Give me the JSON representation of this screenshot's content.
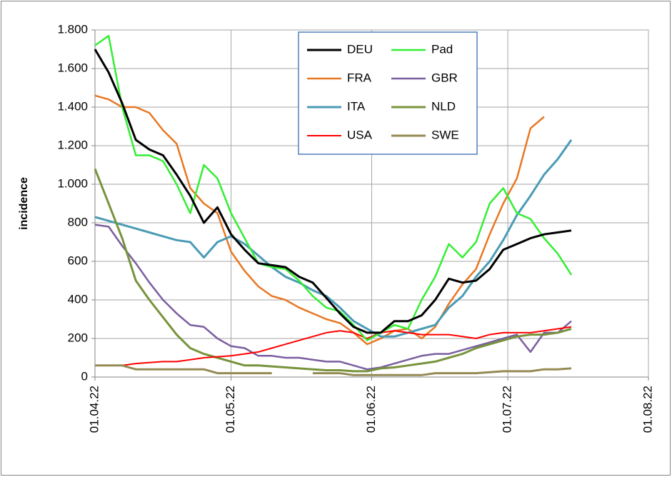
{
  "chart_data": {
    "type": "line",
    "y_label": "incidence",
    "x": [
      "01.04.22",
      "04.04.22",
      "07.04.22",
      "10.04.22",
      "13.04.22",
      "16.04.22",
      "19.04.22",
      "22.04.22",
      "25.04.22",
      "28.04.22",
      "01.05.22",
      "04.05.22",
      "07.05.22",
      "10.05.22",
      "13.05.22",
      "16.05.22",
      "19.05.22",
      "22.05.22",
      "25.05.22",
      "28.05.22",
      "31.05.22",
      "03.06.22",
      "06.06.22",
      "09.06.22",
      "12.06.22",
      "15.06.22",
      "18.06.22",
      "21.06.22",
      "24.06.22",
      "27.06.22",
      "30.06.22",
      "03.07.22",
      "06.07.22",
      "09.07.22",
      "12.07.22",
      "15.07.22"
    ],
    "xlim": [
      "01.04.22",
      "01.08.22"
    ],
    "xticks": [
      "01.04.22",
      "01.05.22",
      "01.06.22",
      "01.07.22",
      "01.08.22"
    ],
    "ylim": [
      0,
      1800
    ],
    "yticks": [
      0,
      200,
      400,
      600,
      800,
      {
        "value": 1000,
        "label": "1.000"
      },
      {
        "value": 1200,
        "label": "1.200"
      },
      {
        "value": 1400,
        "label": "1.400"
      },
      {
        "value": 1600,
        "label": "1.600"
      },
      {
        "value": 1800,
        "label": "1.800"
      }
    ],
    "grid": true,
    "legend": "top-center",
    "series": [
      {
        "name": "DEU",
        "color": "#000000",
        "width": 3,
        "values": [
          1700,
          1580,
          1420,
          1230,
          1180,
          1150,
          1050,
          940,
          800,
          880,
          740,
          660,
          590,
          580,
          570,
          520,
          490,
          410,
          330,
          260,
          230,
          230,
          290,
          290,
          320,
          400,
          510,
          490,
          500,
          560,
          660,
          690,
          720,
          740,
          750,
          760
        ]
      },
      {
        "name": "Pad",
        "color": "#33ee33",
        "width": 2.5,
        "values": [
          1720,
          1770,
          1400,
          1150,
          1150,
          1120,
          1000,
          850,
          1100,
          1030,
          850,
          720,
          590,
          570,
          560,
          500,
          420,
          360,
          340,
          270,
          190,
          230,
          270,
          250,
          400,
          520,
          690,
          620,
          700,
          900,
          980,
          850,
          820,
          720,
          640,
          530
        ]
      },
      {
        "name": "FRA",
        "color": "#e87722",
        "width": 2.5,
        "values": [
          1460,
          1440,
          1400,
          1400,
          1370,
          1280,
          1210,
          980,
          900,
          850,
          650,
          550,
          470,
          420,
          400,
          360,
          330,
          300,
          280,
          230,
          170,
          200,
          240,
          250,
          200,
          260,
          380,
          480,
          560,
          740,
          900,
          1030,
          1290,
          1350,
          null,
          null
        ]
      },
      {
        "name": "GBR",
        "color": "#7a5ea0",
        "width": 2.5,
        "values": [
          790,
          780,
          680,
          590,
          490,
          400,
          330,
          270,
          260,
          200,
          160,
          150,
          110,
          110,
          100,
          100,
          90,
          80,
          80,
          60,
          40,
          50,
          70,
          90,
          110,
          120,
          120,
          140,
          160,
          180,
          200,
          220,
          130,
          230,
          230,
          290
        ]
      },
      {
        "name": "ITA",
        "color": "#4a9bb5",
        "width": 3,
        "values": [
          830,
          810,
          790,
          770,
          750,
          730,
          710,
          700,
          620,
          700,
          730,
          690,
          630,
          570,
          520,
          490,
          450,
          420,
          360,
          290,
          250,
          210,
          210,
          230,
          250,
          270,
          360,
          420,
          520,
          600,
          710,
          840,
          940,
          1050,
          1130,
          1230
        ]
      },
      {
        "name": "NLD",
        "color": "#77933c",
        "width": 3,
        "values": [
          1080,
          900,
          720,
          500,
          400,
          310,
          220,
          150,
          120,
          100,
          80,
          60,
          60,
          55,
          50,
          45,
          40,
          35,
          35,
          30,
          30,
          45,
          50,
          60,
          70,
          80,
          100,
          120,
          150,
          170,
          190,
          210,
          220,
          220,
          230,
          250
        ]
      },
      {
        "name": "USA",
        "color": "#ff0000",
        "width": 2,
        "values": [
          60,
          60,
          60,
          70,
          75,
          80,
          80,
          90,
          100,
          105,
          110,
          120,
          130,
          150,
          170,
          190,
          210,
          230,
          240,
          230,
          200,
          230,
          240,
          230,
          220,
          220,
          220,
          210,
          200,
          220,
          230,
          230,
          230,
          240,
          250,
          260
        ]
      },
      {
        "name": "SWE",
        "color": "#948a54",
        "width": 3,
        "values": [
          60,
          60,
          60,
          40,
          40,
          40,
          40,
          40,
          40,
          20,
          20,
          20,
          20,
          20,
          null,
          null,
          20,
          20,
          20,
          10,
          10,
          10,
          10,
          10,
          10,
          20,
          20,
          20,
          20,
          25,
          30,
          30,
          30,
          40,
          40,
          45
        ]
      }
    ]
  }
}
